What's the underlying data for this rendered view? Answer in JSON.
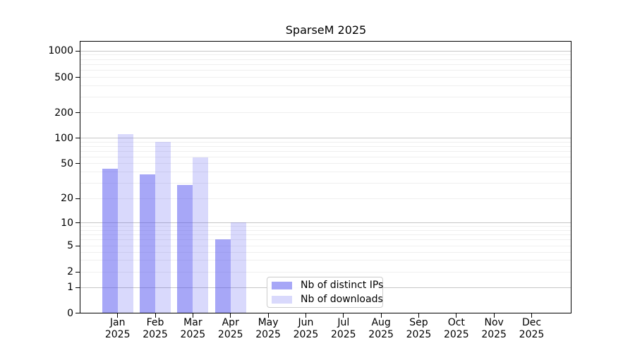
{
  "chart_data": {
    "type": "bar",
    "title": "SparseM 2025",
    "year_label": "2025",
    "months": [
      "Jan",
      "Feb",
      "Mar",
      "Apr",
      "May",
      "Jun",
      "Jul",
      "Aug",
      "Sep",
      "Oct",
      "Nov",
      "Dec"
    ],
    "series": [
      {
        "name": "Nb of distinct IPs",
        "color": "#5050f0",
        "alpha": 0.5,
        "values": [
          43,
          37,
          28,
          6,
          null,
          null,
          null,
          null,
          null,
          null,
          null,
          null
        ]
      },
      {
        "name": "Nb of downloads",
        "color": "#5050f0",
        "alpha": 0.22,
        "values": [
          110,
          89,
          58,
          10,
          null,
          null,
          null,
          null,
          null,
          null,
          null,
          null
        ]
      }
    ],
    "y_ticks": [
      0,
      1,
      2,
      5,
      10,
      20,
      50,
      100,
      200,
      500,
      1000
    ],
    "yscale": "symlog",
    "ylim": [
      0,
      1200
    ],
    "grid": "horizontal; major lines at powers of 10, minor lines at 2-9 sub-steps",
    "legend_position": "lower center",
    "legend_labels": [
      "Nb of distinct IPs",
      "Nb of downloads"
    ]
  }
}
